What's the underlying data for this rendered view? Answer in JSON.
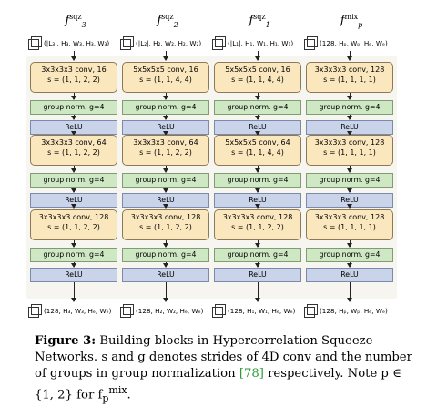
{
  "columns": [
    {
      "id": "f3sqz",
      "head": {
        "base": "f",
        "sub": "3",
        "sup": "sqz"
      },
      "input_shape": "(|L₃|, H₃, W₃, H₃, W₃)",
      "layers": [
        {
          "conv": "3x3x3x3 conv, 16",
          "stride": "s = (1, 1, 2, 2)"
        },
        {
          "gn": "group norm. g=4"
        },
        {
          "relu": "ReLU"
        },
        {
          "conv": "3x3x3x3 conv, 64",
          "stride": "s = (1, 1, 2, 2)"
        },
        {
          "gn": "group norm. g=4"
        },
        {
          "relu": "ReLU"
        },
        {
          "conv": "3x3x3x3 conv, 128",
          "stride": "s = (1, 1, 2, 2)"
        },
        {
          "gn": "group norm. g=4"
        },
        {
          "relu": "ReLU"
        }
      ],
      "output_shape": "(128, H₃, W₃, Hₑ, Wₑ)"
    },
    {
      "id": "f2sqz",
      "head": {
        "base": "f",
        "sub": "2",
        "sup": "sqz"
      },
      "input_shape": "(|L₂|, H₂, W₂, H₂, W₂)",
      "layers": [
        {
          "conv": "5x5x5x5 conv, 16",
          "stride": "s = (1, 1, 4, 4)"
        },
        {
          "gn": "group norm. g=4"
        },
        {
          "relu": "ReLU"
        },
        {
          "conv": "3x3x3x3 conv, 64",
          "stride": "s = (1, 1, 2, 2)"
        },
        {
          "gn": "group norm. g=4"
        },
        {
          "relu": "ReLU"
        },
        {
          "conv": "3x3x3x3 conv, 128",
          "stride": "s = (1, 1, 2, 2)"
        },
        {
          "gn": "group norm. g=4"
        },
        {
          "relu": "ReLU"
        }
      ],
      "output_shape": "(128, H₂, W₂, Hₑ, Wₑ)"
    },
    {
      "id": "f1sqz",
      "head": {
        "base": "f",
        "sub": "1",
        "sup": "sqz"
      },
      "input_shape": "(|L₁|, H₁, W₁, H₁, W₁)",
      "layers": [
        {
          "conv": "5x5x5x5 conv, 16",
          "stride": "s = (1, 1, 4, 4)"
        },
        {
          "gn": "group norm. g=4"
        },
        {
          "relu": "ReLU"
        },
        {
          "conv": "5x5x5x5 conv, 64",
          "stride": "s = (1, 1, 4, 4)"
        },
        {
          "gn": "group norm. g=4"
        },
        {
          "relu": "ReLU"
        },
        {
          "conv": "3x3x3x3 conv, 128",
          "stride": "s = (1, 1, 2, 2)"
        },
        {
          "gn": "group norm. g=4"
        },
        {
          "relu": "ReLU"
        }
      ],
      "output_shape": "(128, H₁, W₁, Hₑ, Wₑ)"
    },
    {
      "id": "fpmix",
      "head": {
        "base": "f",
        "sub": "p",
        "sup": "mix"
      },
      "input_shape": "(128, Hₚ, Wₚ, Hₑ, Wₑ)",
      "layers": [
        {
          "conv": "3x3x3x3 conv, 128",
          "stride": "s = (1, 1, 1, 1)"
        },
        {
          "gn": "group norm. g=4"
        },
        {
          "relu": "ReLU"
        },
        {
          "conv": "3x3x3x3 conv, 128",
          "stride": "s = (1, 1, 1, 1)"
        },
        {
          "gn": "group norm. g=4"
        },
        {
          "relu": "ReLU"
        },
        {
          "conv": "3x3x3x3 conv, 128",
          "stride": "s = (1, 1, 1, 1)"
        },
        {
          "gn": "group norm. g=4"
        },
        {
          "relu": "ReLU"
        }
      ],
      "output_shape": "(128, Hₚ, Wₚ, Hₑ, Wₑ)"
    }
  ],
  "caption": {
    "label": "Figure 3:",
    "text1": " Building blocks in Hypercorrelation Squeeze Networks. s and g denotes strides of 4D conv and the number of groups in group normalization ",
    "ref": "[78]",
    "text2": " respectively. Note p ∈ {1, 2} for f",
    "tail_sub": "p",
    "tail_sup": "mix",
    "end": "."
  },
  "colors": {
    "conv": "#fbe7bd",
    "group_norm": "#cfe8c4",
    "relu": "#c9d3ea",
    "reference": "#2e9a3a"
  }
}
